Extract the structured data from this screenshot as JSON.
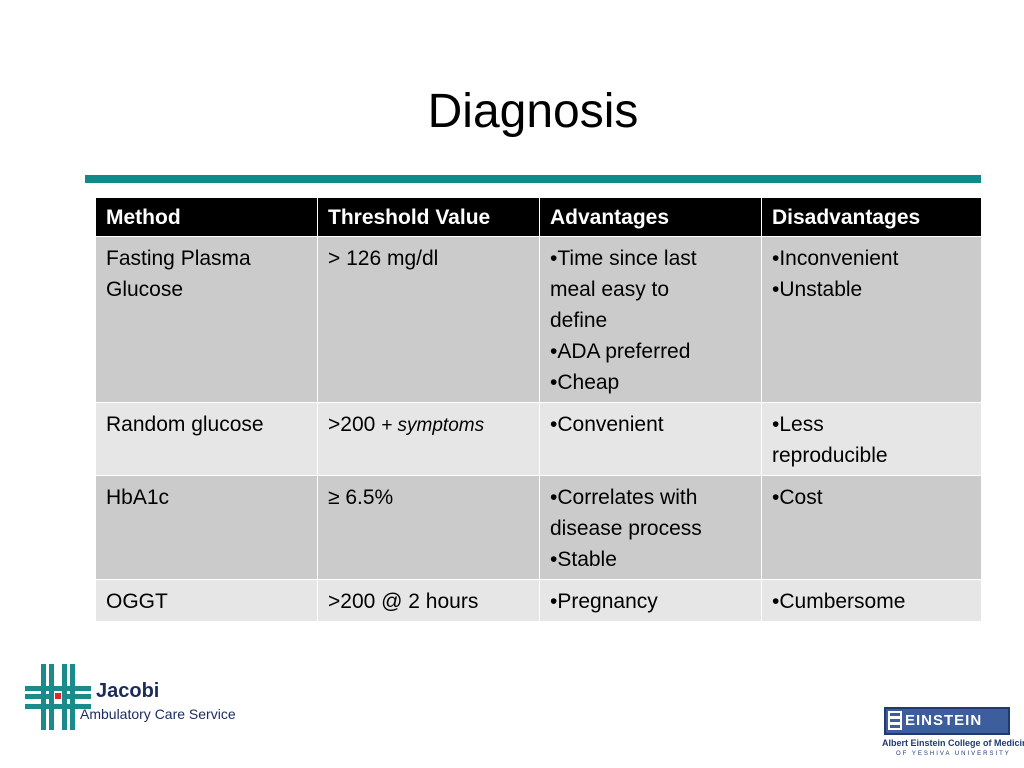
{
  "slide": {
    "title": "Diagnosis"
  },
  "table": {
    "headers": [
      "Method",
      "Threshold Value",
      "Advantages",
      "Disadvantages"
    ],
    "rows": [
      {
        "method": [
          "Fasting Plasma",
          "Glucose"
        ],
        "threshold": "> 126 mg/dl",
        "threshold_note": "",
        "advantages": [
          "•Time since last",
          "meal easy to",
          "define",
          "•ADA preferred",
          "•Cheap"
        ],
        "disadvantages": [
          "•Inconvenient",
          "•Unstable"
        ]
      },
      {
        "method": [
          "Random glucose"
        ],
        "threshold": ">200 ",
        "threshold_note": "+ symptoms",
        "advantages": [
          "•Convenient"
        ],
        "disadvantages": [
          "•Less",
          "reproducible"
        ]
      },
      {
        "method": [
          "HbA1c"
        ],
        "threshold": "≥ 6.5%",
        "threshold_note": "",
        "advantages": [
          "•Correlates with",
          "disease process",
          "•Stable"
        ],
        "disadvantages": [
          "•Cost"
        ]
      },
      {
        "method": [
          "OGGT"
        ],
        "threshold": ">200 @ 2 hours",
        "threshold_note": "",
        "advantages": [
          "•Pregnancy"
        ],
        "disadvantages": [
          "•Cumbersome"
        ]
      }
    ]
  },
  "logos": {
    "jacobi_name": "Jacobi",
    "jacobi_subtitle": "Ambulatory Care Service",
    "einstein_name": "EINSTEIN",
    "einstein_college": "Albert Einstein College of Medicine",
    "einstein_university": "OF YESHIVA UNIVERSITY"
  },
  "colors": {
    "accent_rule": "#0e8a8a",
    "header_bg": "#000000",
    "row_dark": "#cbcbcb",
    "row_light": "#e6e6e6"
  }
}
